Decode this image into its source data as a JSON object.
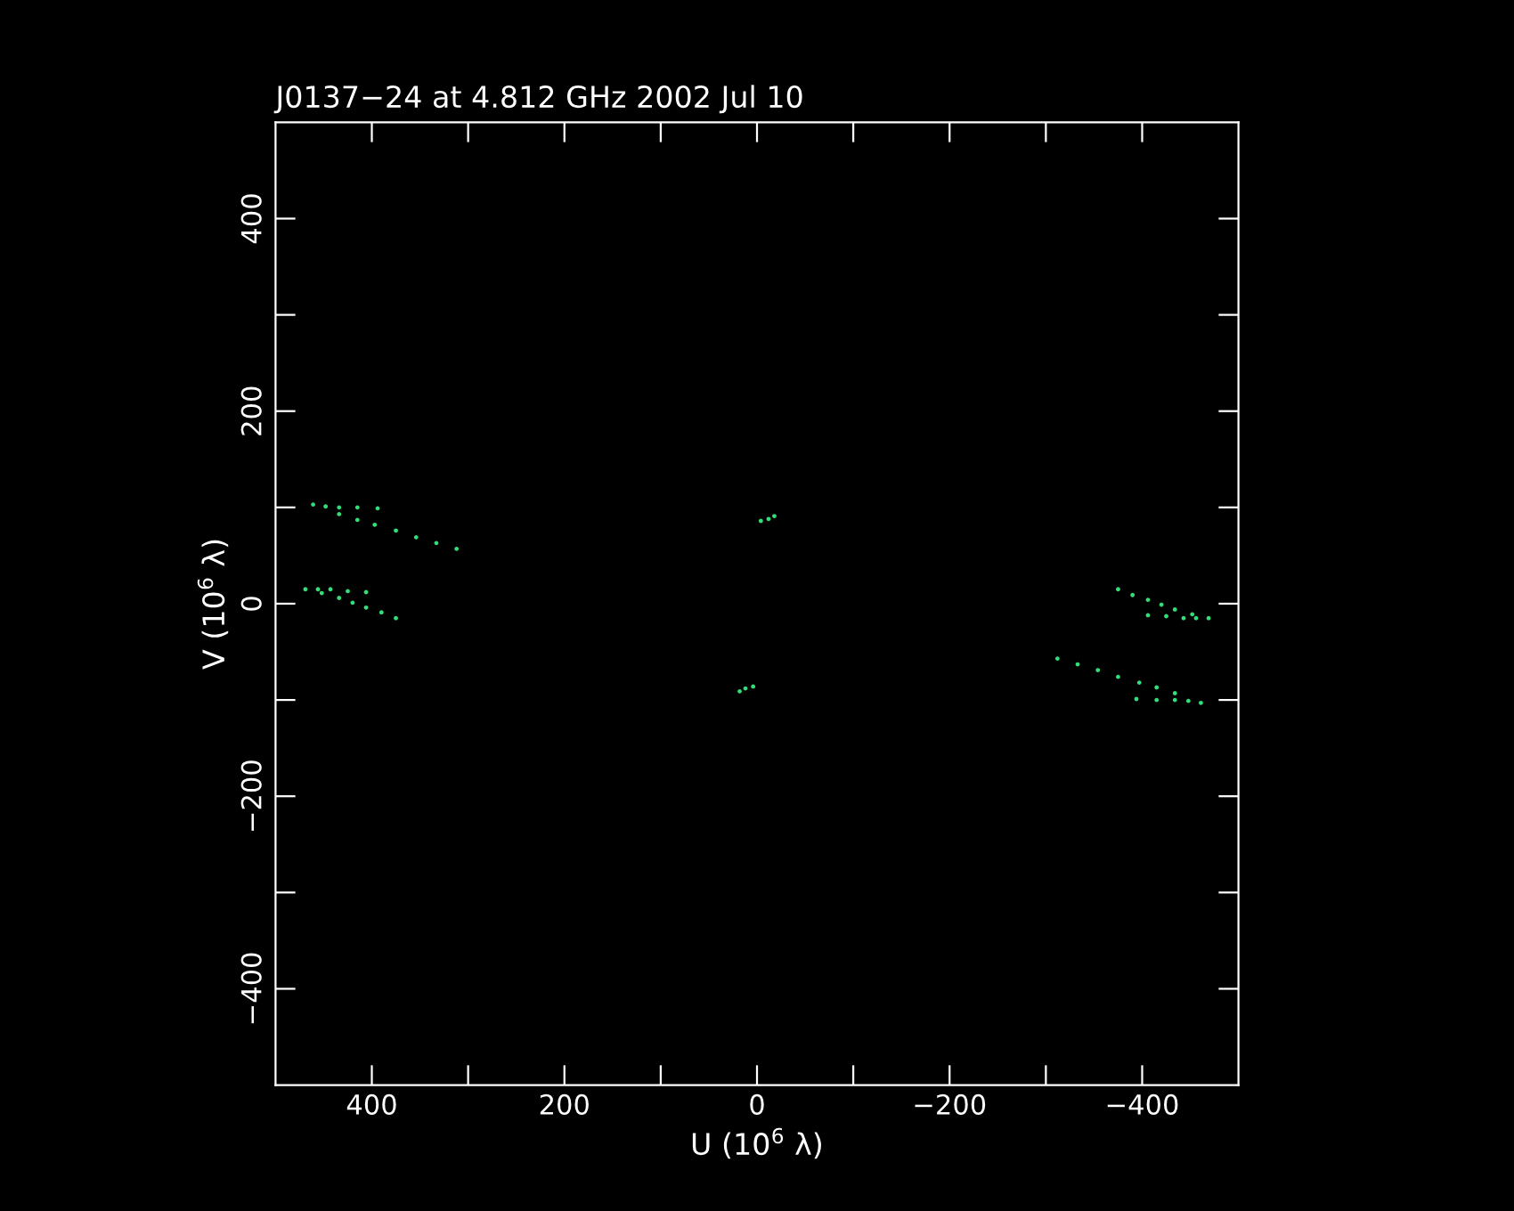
{
  "chart_data": {
    "type": "scatter",
    "title": "J0137−24 at 4.812 GHz 2002 Jul 10",
    "xlabel": "U (10$^{6}$ λ)",
    "ylabel": "V (10$^{6}$ λ)",
    "series": [
      {
        "color": "#33dd77",
        "x": [
          312,
          333,
          354,
          375,
          397,
          415,
          434,
          461,
          448,
          434,
          415,
          394,
          375,
          390,
          406,
          420,
          434,
          452,
          469,
          456,
          443,
          425,
          406,
          -312,
          -333,
          -354,
          -375,
          -397,
          -415,
          -434,
          -461,
          -448,
          -434,
          -415,
          -394,
          -375,
          -390,
          -406,
          -420,
          -434,
          -452,
          -469,
          -456,
          -443,
          -425,
          -406,
          -4,
          -12,
          -18,
          4,
          12,
          18
        ],
        "values": [
          57,
          63,
          69,
          76,
          82,
          87,
          93,
          103,
          101,
          100,
          100,
          99,
          -15,
          -9,
          -4,
          1,
          6,
          11,
          15,
          15,
          15,
          13,
          12,
          -57,
          -63,
          -69,
          -76,
          -82,
          -87,
          -93,
          -103,
          -101,
          -100,
          -100,
          -99,
          15,
          9,
          4,
          -1,
          -6,
          -11,
          -15,
          -15,
          -15,
          -13,
          -12,
          86,
          88,
          91,
          -86,
          -88,
          -91
        ]
      }
    ],
    "xlim": [
      500,
      -500
    ],
    "ylim": [
      -500,
      500
    ],
    "xticks": [
      400,
      {
        "value": 300,
        "label": null
      },
      200,
      {
        "value": 100,
        "label": null
      },
      0,
      {
        "value": -100,
        "label": null
      },
      {
        "value": -200,
        "label": "−200"
      },
      {
        "value": -300,
        "label": null
      },
      {
        "value": -400,
        "label": "−400"
      }
    ],
    "yticks": [
      {
        "value": -400,
        "label": "−400"
      },
      {
        "value": -300,
        "label": null
      },
      {
        "value": -200,
        "label": "−200"
      },
      {
        "value": -100,
        "label": null
      },
      0,
      {
        "value": 100,
        "label": null
      },
      200,
      {
        "value": 300,
        "label": null
      },
      400
    ],
    "grid": false,
    "legend": false
  }
}
